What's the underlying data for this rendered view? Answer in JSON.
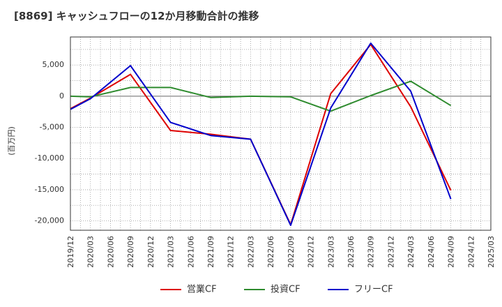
{
  "chart_data": {
    "type": "line",
    "title": "[8869]  キャッシュフローの12か月移動合計の推移",
    "ylabel": "(百万円)",
    "xlabel": "",
    "ylim": [
      -21500,
      9500
    ],
    "yticks": [
      5000,
      0,
      -5000,
      -10000,
      -15000,
      -20000
    ],
    "ytick_labels": [
      "5,000",
      "0",
      "-5,000",
      "-10,000",
      "-15,000",
      "-20,000"
    ],
    "x_categories": [
      "2019/12",
      "2020/03",
      "2020/06",
      "2020/09",
      "2020/12",
      "2021/03",
      "2021/06",
      "2021/09",
      "2021/12",
      "2022/03",
      "2022/06",
      "2022/09",
      "2022/12",
      "2023/03",
      "2023/06",
      "2023/09",
      "2023/12",
      "2024/03",
      "2024/06",
      "2024/09",
      "2024/12",
      "2025/03"
    ],
    "grid": true,
    "legend_position": "bottom",
    "series": [
      {
        "name": "営業CF",
        "color": "#dd0000",
        "points": [
          {
            "x": "2019/12",
            "y": -2000
          },
          {
            "x": "2020/03",
            "y": -300
          },
          {
            "x": "2020/09",
            "y": 3500
          },
          {
            "x": "2021/03",
            "y": -5500
          },
          {
            "x": "2021/09",
            "y": -6100
          },
          {
            "x": "2022/03",
            "y": -6900
          },
          {
            "x": "2022/09",
            "y": -20600
          },
          {
            "x": "2023/03",
            "y": 400
          },
          {
            "x": "2023/09",
            "y": 8300
          },
          {
            "x": "2024/03",
            "y": -1700
          },
          {
            "x": "2024/09",
            "y": -15100
          }
        ]
      },
      {
        "name": "投資CF",
        "color": "#2e8b2e",
        "points": [
          {
            "x": "2019/12",
            "y": 0
          },
          {
            "x": "2020/03",
            "y": -100
          },
          {
            "x": "2020/09",
            "y": 1400
          },
          {
            "x": "2021/03",
            "y": 1400
          },
          {
            "x": "2021/09",
            "y": -200
          },
          {
            "x": "2022/03",
            "y": 0
          },
          {
            "x": "2022/09",
            "y": -100
          },
          {
            "x": "2023/03",
            "y": -2400
          },
          {
            "x": "2023/09",
            "y": 100
          },
          {
            "x": "2024/03",
            "y": 2400
          },
          {
            "x": "2024/09",
            "y": -1500
          }
        ]
      },
      {
        "name": "フリーCF",
        "color": "#0000cc",
        "points": [
          {
            "x": "2019/12",
            "y": -2100
          },
          {
            "x": "2020/03",
            "y": -400
          },
          {
            "x": "2020/09",
            "y": 4900
          },
          {
            "x": "2021/03",
            "y": -4200
          },
          {
            "x": "2021/09",
            "y": -6300
          },
          {
            "x": "2022/03",
            "y": -6900
          },
          {
            "x": "2022/09",
            "y": -20700
          },
          {
            "x": "2023/03",
            "y": -1900
          },
          {
            "x": "2023/09",
            "y": 8500
          },
          {
            "x": "2024/03",
            "y": 800
          },
          {
            "x": "2024/09",
            "y": -16500
          }
        ]
      }
    ]
  }
}
